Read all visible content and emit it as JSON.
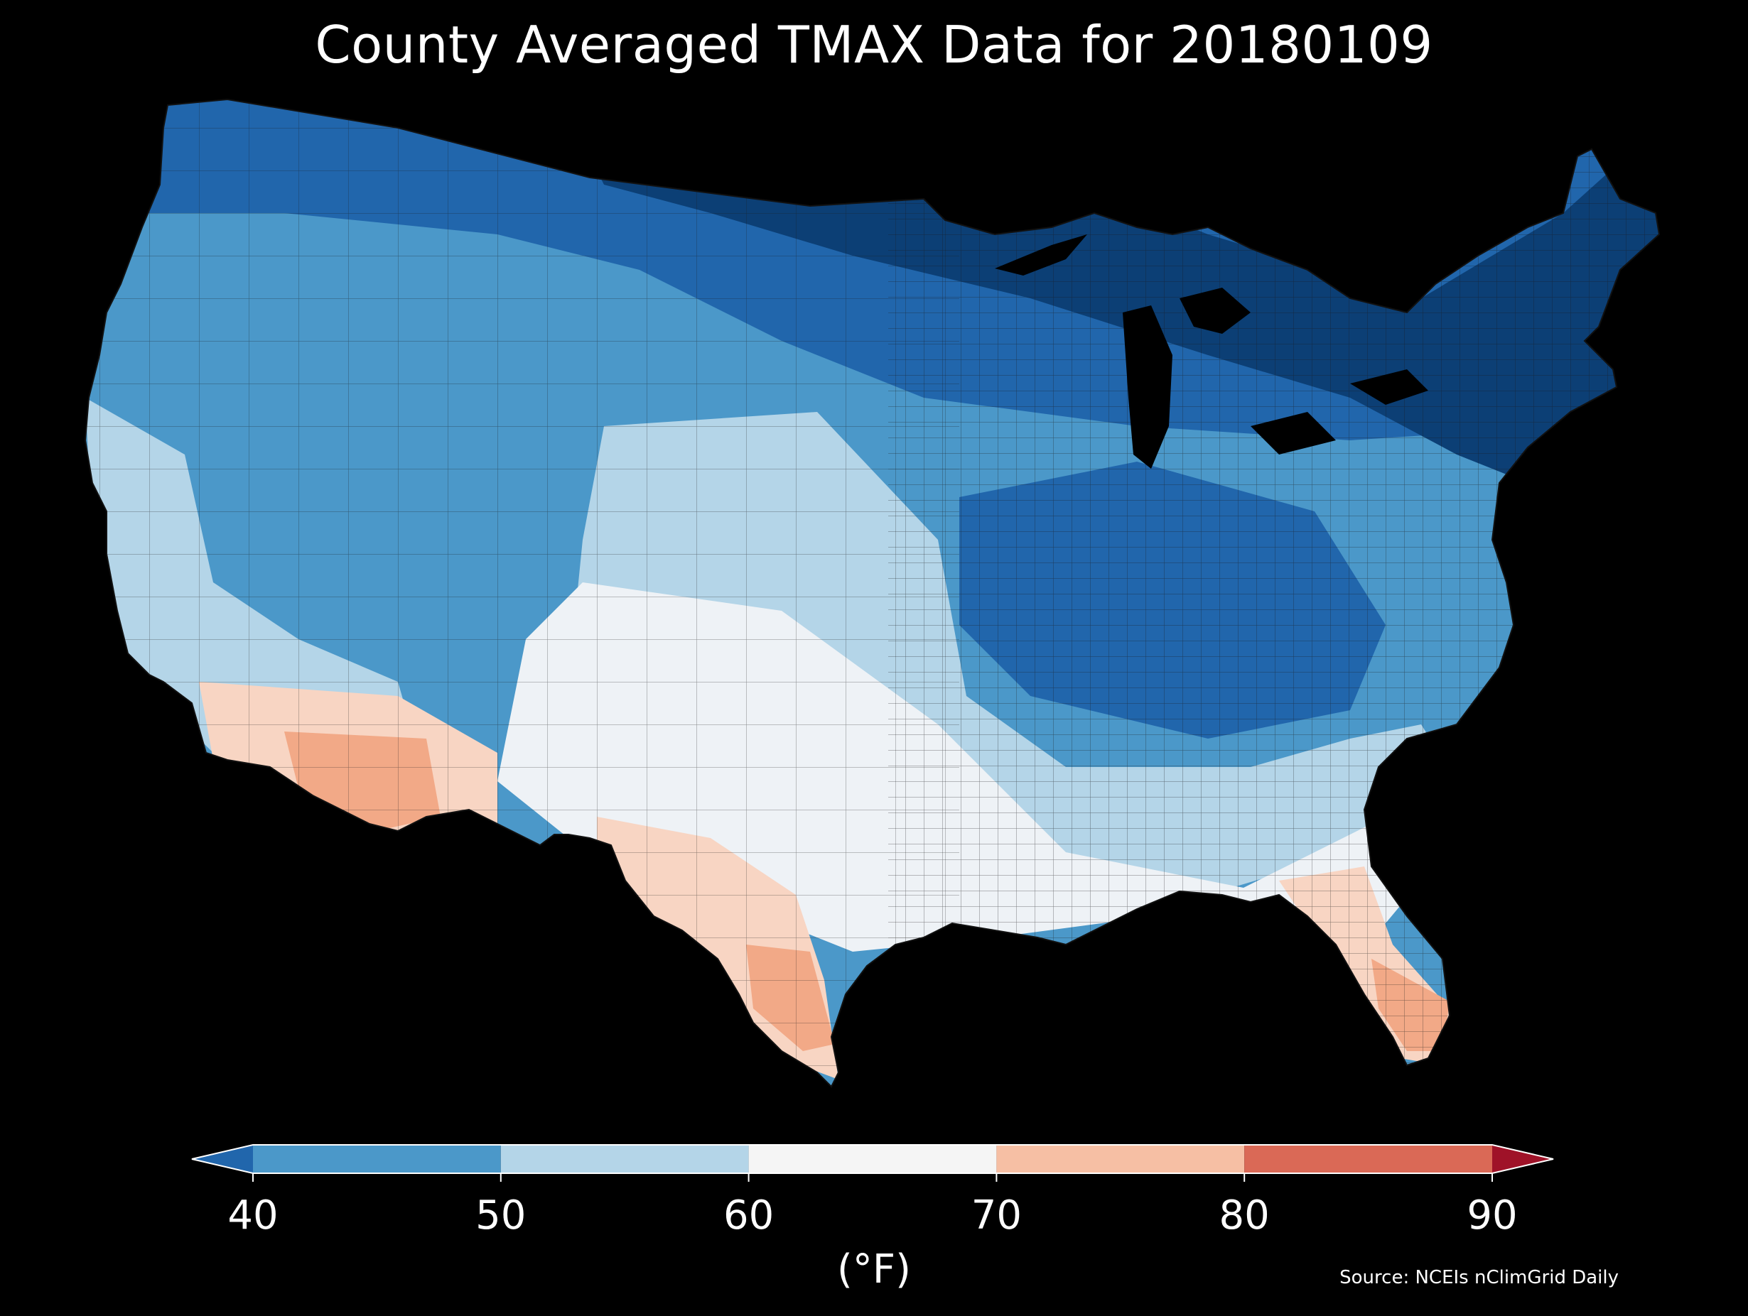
{
  "title": "County Averaged TMAX Data for 20180109",
  "colorbar": {
    "ticks": [
      "40",
      "50",
      "60",
      "70",
      "80",
      "90"
    ],
    "units": "(°F)",
    "bins": [
      {
        "from": 40,
        "to": 50,
        "color": "#4b98c9"
      },
      {
        "from": 50,
        "to": 60,
        "color": "#b4d5e8"
      },
      {
        "from": 60,
        "to": 70,
        "color": "#f5f5f5"
      },
      {
        "from": 70,
        "to": 80,
        "color": "#f6bfa4"
      },
      {
        "from": 80,
        "to": 90,
        "color": "#da6956"
      }
    ],
    "under_color": "#2166ac",
    "over_color": "#9f1228"
  },
  "source": "Source: NCEIs nClimGrid Daily",
  "map": {
    "region": "Contiguous United States, county level",
    "colors": {
      "very_cold": "#0c3f75",
      "cold": "#2166ac",
      "cool": "#4b98c9",
      "mild": "#b4d5e8",
      "neutral": "#eef2f6",
      "warm": "#f8d5c3",
      "hot": "#f2a987",
      "county_border": "#1a1a1a",
      "background": "#000000"
    }
  }
}
